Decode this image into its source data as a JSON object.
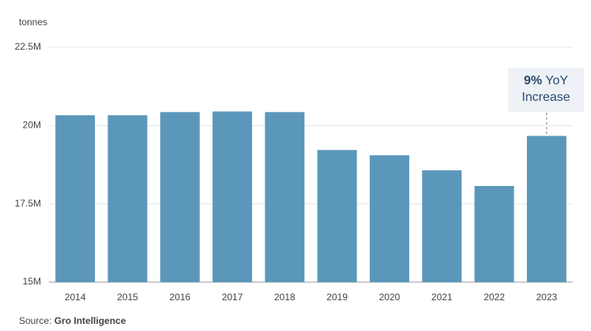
{
  "chart_data": {
    "type": "bar",
    "unit_label": "tonnes",
    "categories": [
      "2014",
      "2015",
      "2016",
      "2017",
      "2018",
      "2019",
      "2020",
      "2021",
      "2022",
      "2023"
    ],
    "values": [
      20330000,
      20330000,
      20430000,
      20450000,
      20430000,
      19220000,
      19050000,
      18570000,
      18070000,
      19670000
    ],
    "color": "#5b97bb",
    "ylim": [
      15000000,
      22500000
    ],
    "yticks": [
      {
        "value": 15000000,
        "label": "15M"
      },
      {
        "value": 17500000,
        "label": "17.5M"
      },
      {
        "value": 20000000,
        "label": "20M"
      },
      {
        "value": 22500000,
        "label": "22.5M"
      }
    ],
    "grid": true,
    "annotation": {
      "bold": "9%",
      "text1": "YoY",
      "text2": "Increase"
    },
    "source_label": "Source:",
    "source": "Gro Intelligence"
  }
}
